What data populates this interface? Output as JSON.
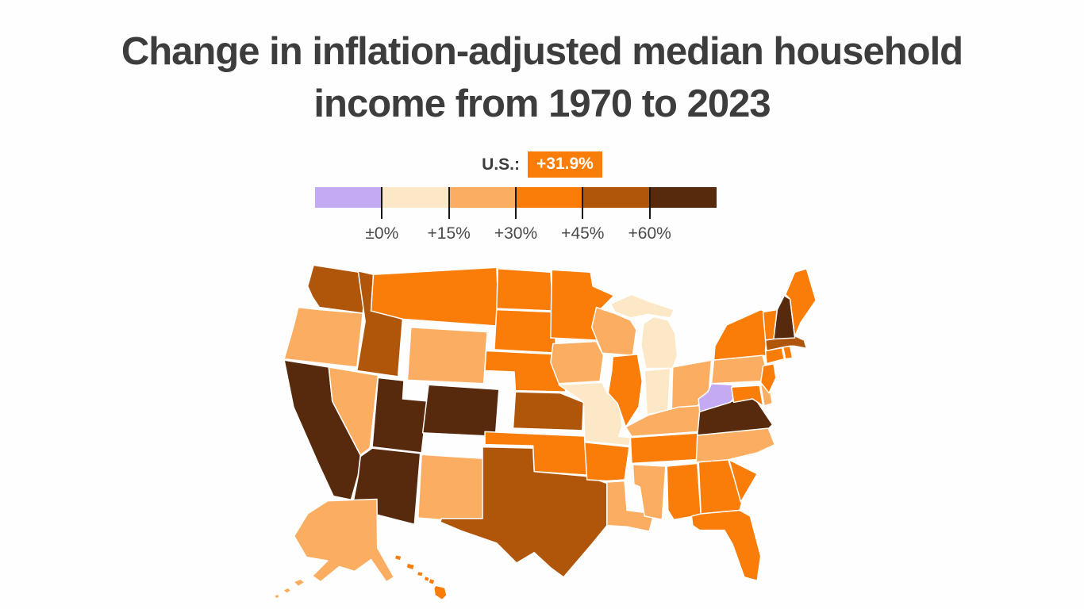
{
  "title": {
    "line1": "Change in inflation-adjusted median household",
    "line2": "income from 1970 to 2023"
  },
  "legend": {
    "us_label": "U.S.:",
    "us_value": "+31.9%",
    "badge_color": "#fa7d09",
    "tick_labels": [
      "±0%",
      "+15%",
      "+30%",
      "+45%",
      "+60%"
    ],
    "buckets": [
      {
        "label": "decline (below 0%)",
        "color": "#c3aaf2"
      },
      {
        "label": "0% to +15%",
        "color": "#fce8c7"
      },
      {
        "label": "+15% to +30%",
        "color": "#fbae62"
      },
      {
        "label": "+30% to +45%",
        "color": "#fa7d09"
      },
      {
        "label": "+45% to +60%",
        "color": "#b0560b"
      },
      {
        "label": "+60% or more",
        "color": "#572a0d"
      }
    ]
  },
  "chart_data": {
    "type": "choropleth",
    "title": "Change in inflation-adjusted median household income from 1970 to 2023",
    "unit": "percent change in inflation-adjusted median household income, 1970 to 2023",
    "us_value_pct": 31.9,
    "bins": [
      "<0%",
      "0-15%",
      "15-30%",
      "30-45%",
      "45-60%",
      "60%+"
    ],
    "states": {
      "WA": {
        "name": "Washington",
        "bin": "45-60%"
      },
      "OR": {
        "name": "Oregon",
        "bin": "15-30%"
      },
      "CA": {
        "name": "California",
        "bin": "60%+"
      },
      "NV": {
        "name": "Nevada",
        "bin": "15-30%"
      },
      "ID": {
        "name": "Idaho",
        "bin": "45-60%"
      },
      "MT": {
        "name": "Montana",
        "bin": "30-45%"
      },
      "WY": {
        "name": "Wyoming",
        "bin": "15-30%"
      },
      "UT": {
        "name": "Utah",
        "bin": "60%+"
      },
      "CO": {
        "name": "Colorado",
        "bin": "60%+"
      },
      "AZ": {
        "name": "Arizona",
        "bin": "60%+"
      },
      "NM": {
        "name": "New Mexico",
        "bin": "15-30%"
      },
      "ND": {
        "name": "North Dakota",
        "bin": "30-45%"
      },
      "SD": {
        "name": "South Dakota",
        "bin": "30-45%"
      },
      "NE": {
        "name": "Nebraska",
        "bin": "30-45%"
      },
      "KS": {
        "name": "Kansas",
        "bin": "45-60%"
      },
      "OK": {
        "name": "Oklahoma",
        "bin": "30-45%"
      },
      "TX": {
        "name": "Texas",
        "bin": "45-60%"
      },
      "MN": {
        "name": "Minnesota",
        "bin": "30-45%"
      },
      "IA": {
        "name": "Iowa",
        "bin": "15-30%"
      },
      "MO": {
        "name": "Missouri",
        "bin": "0-15%"
      },
      "AR": {
        "name": "Arkansas",
        "bin": "30-45%"
      },
      "LA": {
        "name": "Louisiana",
        "bin": "15-30%"
      },
      "WI": {
        "name": "Wisconsin",
        "bin": "15-30%"
      },
      "IL": {
        "name": "Illinois",
        "bin": "30-45%"
      },
      "MI": {
        "name": "Michigan",
        "bin": "0-15%"
      },
      "IN": {
        "name": "Indiana",
        "bin": "0-15%"
      },
      "OH": {
        "name": "Ohio",
        "bin": "15-30%"
      },
      "KY": {
        "name": "Kentucky",
        "bin": "15-30%"
      },
      "TN": {
        "name": "Tennessee",
        "bin": "30-45%"
      },
      "MS": {
        "name": "Mississippi",
        "bin": "15-30%"
      },
      "AL": {
        "name": "Alabama",
        "bin": "30-45%"
      },
      "GA": {
        "name": "Georgia",
        "bin": "30-45%"
      },
      "FL": {
        "name": "Florida",
        "bin": "30-45%"
      },
      "SC": {
        "name": "South Carolina",
        "bin": "30-45%"
      },
      "NC": {
        "name": "North Carolina",
        "bin": "15-30%"
      },
      "VA": {
        "name": "Virginia",
        "bin": "60%+"
      },
      "WV": {
        "name": "West Virginia",
        "bin": "<0%"
      },
      "MD": {
        "name": "Maryland",
        "bin": "30-45%"
      },
      "DE": {
        "name": "Delaware",
        "bin": "15-30%"
      },
      "PA": {
        "name": "Pennsylvania",
        "bin": "15-30%"
      },
      "NJ": {
        "name": "New Jersey",
        "bin": "30-45%"
      },
      "NY": {
        "name": "New York",
        "bin": "30-45%"
      },
      "CT": {
        "name": "Connecticut",
        "bin": "30-45%"
      },
      "RI": {
        "name": "Rhode Island",
        "bin": "30-45%"
      },
      "MA": {
        "name": "Massachusetts",
        "bin": "45-60%"
      },
      "VT": {
        "name": "Vermont",
        "bin": "30-45%"
      },
      "NH": {
        "name": "New Hampshire",
        "bin": "60%+"
      },
      "ME": {
        "name": "Maine",
        "bin": "30-45%"
      },
      "AK": {
        "name": "Alaska",
        "bin": "15-30%"
      },
      "HI": {
        "name": "Hawaii",
        "bin": "30-45%"
      }
    }
  }
}
